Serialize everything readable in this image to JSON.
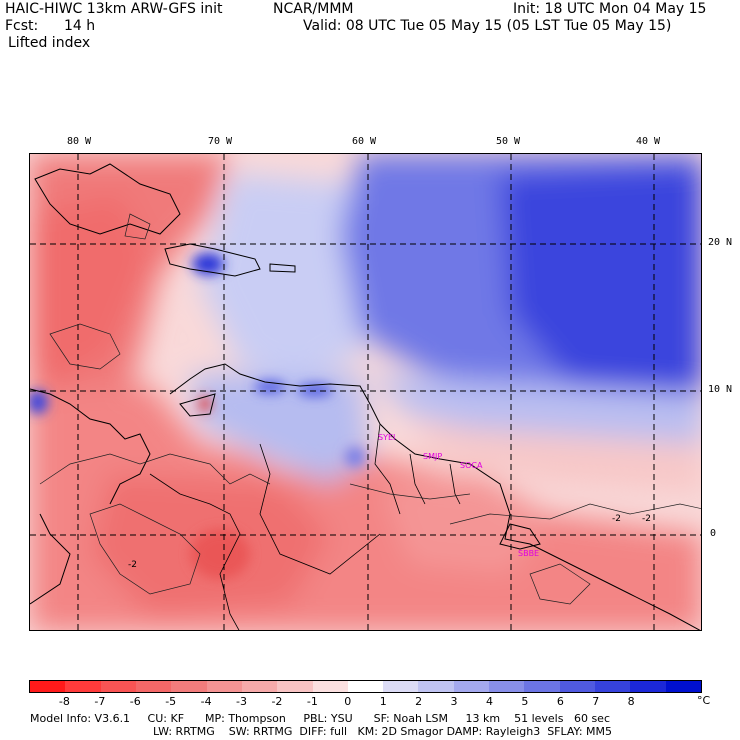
{
  "header": {
    "model_title": "HAIC-HIWC 13km ARW-GFS init",
    "org": "NCAR/MMM",
    "init_time": "Init: 18 UTC Mon 04 May 15",
    "fcst_label": "Fcst:",
    "fcst_value": "14 h",
    "valid_time": "Valid: 08 UTC Tue 05 May 15 (05 LST Tue 05 May 15)",
    "field_name": "Lifted index"
  },
  "map": {
    "lon_labels": [
      "80 W",
      "70 W",
      "60 W",
      "50 W",
      "40 W"
    ],
    "lat_labels": [
      "20 N",
      "10 N",
      "0"
    ],
    "contour_labels": [
      "-2",
      "-2",
      "-2"
    ],
    "stations": [
      "SYEI",
      "SMJP",
      "SOCA",
      "SBBE"
    ]
  },
  "colorbar": {
    "labels": [
      "-8",
      "-7",
      "-6",
      "-5",
      "-4",
      "-3",
      "-2",
      "-1",
      "0",
      "1",
      "2",
      "3",
      "4",
      "5",
      "6",
      "7",
      "8"
    ],
    "unit": "°C",
    "colors": [
      "#ff1a1a",
      "#ff3b3b",
      "#f95454",
      "#f46868",
      "#f27c7c",
      "#f49393",
      "#f6aaaa",
      "#f8c4c4",
      "#fbe0e0",
      "#ffffff",
      "#dcdcf6",
      "#c0c4f2",
      "#a4a9ee",
      "#888fe9",
      "#6c75e4",
      "#505ae0",
      "#3642dc",
      "#1c28d8",
      "#0010d0"
    ]
  },
  "footer": {
    "line1": "Model Info: V3.6.1     CU: KF      MP: Thompson     PBL: YSU      SF: Noah LSM     13 km    51 levels   60 sec",
    "line2": "LW: RRTMG    SW: RRTMG  DIFF: full   KM: 2D Smagor DAMP: Rayleigh3  SFLAY: MM5"
  }
}
